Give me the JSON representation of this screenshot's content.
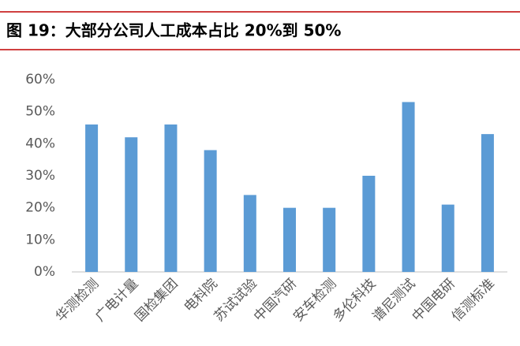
{
  "chart_data": {
    "type": "bar",
    "title": "图 19：大部分公司人工成本占比 20%到 50%",
    "categories": [
      "华测检测",
      "广电计量",
      "国检集团",
      "电科院",
      "苏试试验",
      "中国汽研",
      "安车检测",
      "多伦科技",
      "谱尼测试",
      "中国电研",
      "信测标准"
    ],
    "values": [
      46,
      42,
      46,
      38,
      24,
      20,
      20,
      30,
      53,
      21,
      43
    ],
    "color": "#5b9bd5",
    "ylim": [
      0,
      60
    ],
    "yticks": [
      {
        "value": 0,
        "label": "0%"
      },
      {
        "value": 10,
        "label": "10%"
      },
      {
        "value": 20,
        "label": "20%"
      },
      {
        "value": 30,
        "label": "30%"
      },
      {
        "value": 40,
        "label": "40%"
      },
      {
        "value": 50,
        "label": "50%"
      },
      {
        "value": 60,
        "label": "60%"
      }
    ],
    "grid": false
  }
}
